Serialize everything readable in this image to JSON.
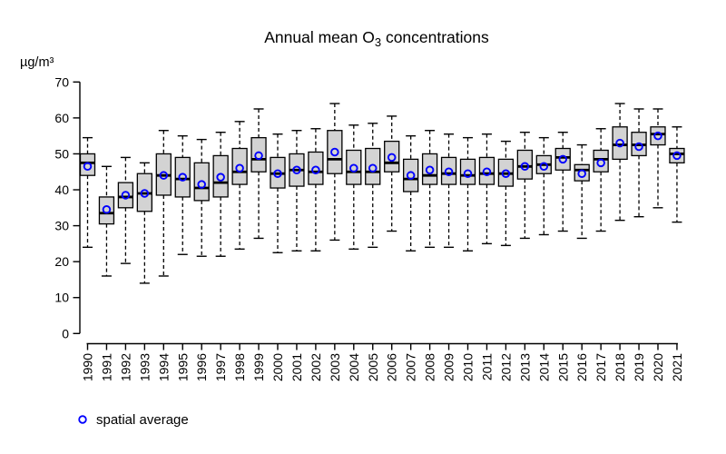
{
  "title": {
    "prefix": "Annual mean O",
    "subscript": "3",
    "suffix": " concentrations"
  },
  "y_axis": {
    "label": "µg/m³",
    "ticks": [
      0,
      10,
      20,
      30,
      40,
      50,
      60,
      70
    ],
    "range": [
      0,
      70
    ]
  },
  "legend": {
    "label": "spatial average"
  },
  "colors": {
    "box_fill": "#d3d3d3",
    "box_border": "#000000",
    "median": "#000000",
    "whisker": "#000000",
    "mean_marker": "#0000ff",
    "background": "#ffffff",
    "text": "#000000"
  },
  "chart_data": {
    "type": "boxplot",
    "title": "Annual mean O3 concentrations",
    "xlabel": "",
    "ylabel": "µg/m³",
    "ylim": [
      0,
      70
    ],
    "grid": false,
    "legend_position": "bottom-left",
    "categories": [
      "1990",
      "1991",
      "1992",
      "1993",
      "1994",
      "1995",
      "1996",
      "1997",
      "1998",
      "1999",
      "2000",
      "2001",
      "2002",
      "2003",
      "2004",
      "2005",
      "2006",
      "2007",
      "2008",
      "2009",
      "2010",
      "2011",
      "2012",
      "2013",
      "2014",
      "2015",
      "2016",
      "2017",
      "2018",
      "2019",
      "2020",
      "2021"
    ],
    "stats": {
      "whisker_low": [
        24,
        16,
        19.5,
        14,
        16,
        22,
        21.5,
        21.5,
        23.5,
        26.5,
        22.5,
        23,
        23,
        26,
        23.5,
        24,
        28.5,
        23,
        24,
        24,
        23,
        25,
        24.5,
        26.5,
        27.5,
        28.5,
        26.5,
        28.5,
        31.5,
        32.5,
        35,
        31
      ],
      "q1": [
        44,
        30.5,
        35,
        34,
        38.5,
        38,
        37,
        38,
        41.5,
        45,
        40.5,
        41,
        41.5,
        44.5,
        41.5,
        41.5,
        45,
        39.5,
        41.5,
        41.5,
        41.5,
        41.5,
        41,
        43,
        44.5,
        45.5,
        42.5,
        45,
        48.5,
        49.5,
        52.5,
        47.5
      ],
      "median": [
        47.5,
        33.5,
        38,
        39,
        44,
        43,
        40.5,
        42,
        45,
        48.5,
        44.5,
        45.5,
        45,
        48.5,
        45,
        45,
        47.5,
        43,
        44,
        44.5,
        44,
        44.5,
        44.5,
        46.5,
        47,
        49,
        45.5,
        48.5,
        52.5,
        52.5,
        55.5,
        50
      ],
      "q3": [
        50,
        38,
        42,
        44.5,
        50,
        49,
        47.5,
        49.5,
        51.5,
        54.5,
        49,
        50,
        50.5,
        56.5,
        51,
        51.5,
        53.5,
        48.5,
        50,
        49,
        48.5,
        49,
        48.5,
        51,
        49.5,
        51.5,
        47,
        51,
        57.5,
        56,
        57.5,
        51.5
      ],
      "whisker_high": [
        54.5,
        46.5,
        49,
        47.5,
        56.5,
        55,
        54,
        56,
        59,
        62.5,
        55.5,
        56.5,
        57,
        64,
        58,
        58.5,
        60.5,
        55,
        56.5,
        55.5,
        54.5,
        55.5,
        53.5,
        56,
        54.5,
        56,
        52.5,
        57,
        64,
        62.5,
        62.5,
        57.5
      ],
      "spatial_average": [
        46.5,
        34.5,
        38.5,
        39,
        44,
        43.5,
        41.5,
        43.5,
        46,
        49.5,
        44.5,
        45.5,
        45.5,
        50.5,
        46,
        46,
        49,
        44,
        45.5,
        45,
        44.5,
        45,
        44.5,
        46.5,
        46.5,
        48.5,
        44.5,
        47.5,
        53,
        52,
        55,
        49.5
      ]
    }
  }
}
